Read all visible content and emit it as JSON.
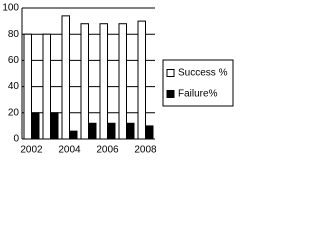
{
  "chart_data": {
    "type": "bar",
    "categories": [
      "2002",
      null,
      "2004",
      null,
      "2006",
      null,
      "2008"
    ],
    "series": [
      {
        "name": "Success %",
        "color": "#ffffff",
        "values": [
          80,
          80,
          94,
          88,
          88,
          88,
          90
        ]
      },
      {
        "name": "Failure%",
        "color": "#000000",
        "values": [
          20,
          20,
          6,
          12,
          12,
          12,
          10
        ]
      }
    ],
    "ylim": [
      0,
      100
    ],
    "yticks": [
      0,
      20,
      40,
      60,
      80,
      100
    ],
    "grid": true,
    "legend": "right"
  }
}
